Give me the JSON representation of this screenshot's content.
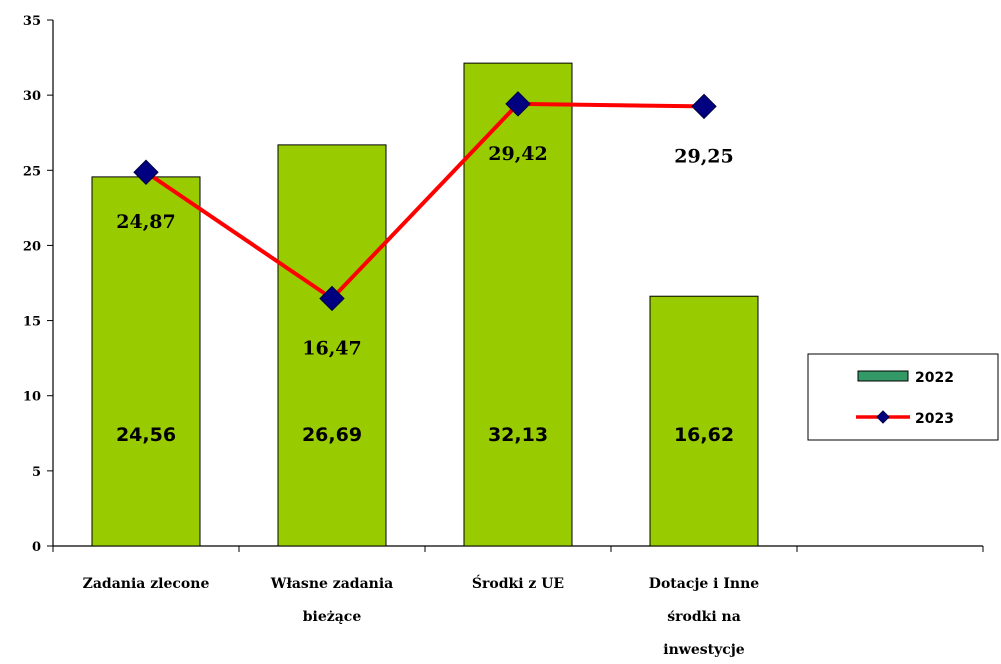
{
  "chart_data": {
    "type": "bar",
    "title": "",
    "xlabel": "",
    "ylabel": "",
    "categories": [
      [
        "Zadania zlecone"
      ],
      [
        "Własne zadania",
        "bieżące"
      ],
      [
        "Środki z UE"
      ],
      [
        "Dotacje i Inne",
        "środki na",
        "inwestycje"
      ],
      [
        ""
      ]
    ],
    "ylim": [
      0,
      35
    ],
    "yticks": [
      "0",
      "5",
      "10",
      "15",
      "20",
      "25",
      "30",
      "35"
    ],
    "grid": false,
    "legend_position": "right",
    "series": [
      {
        "name": "2022",
        "type": "bar",
        "color": "#99cc00",
        "legend_color": "#339966",
        "values": [
          24.56,
          26.69,
          32.13,
          16.62,
          null
        ],
        "labels": [
          "24,56",
          "26,69",
          "32,13",
          "16,62",
          ""
        ]
      },
      {
        "name": "2023",
        "type": "line",
        "color": "#ff0000",
        "marker": "diamond",
        "marker_color": "#000080",
        "values": [
          24.87,
          16.47,
          29.42,
          29.25,
          null
        ],
        "labels": [
          "24,87",
          "16,47",
          "29,42",
          "29,25",
          ""
        ]
      }
    ]
  }
}
